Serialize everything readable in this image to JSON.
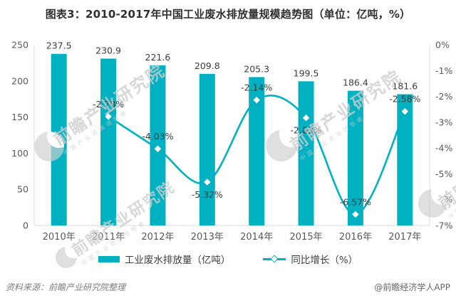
{
  "title": "图表3：2010-2017年中国工业废水排放量规模趋势图（单位：亿吨，%）",
  "colors": {
    "accent": "#00b1c2",
    "axis_line": "#d9d9d9",
    "tick_text": "#595959",
    "value_text": "#3d3d3d",
    "title_text": "#303030",
    "watermark": "#cdcdcd"
  },
  "watermark": {
    "text": "前瞻产业研究院",
    "subtext": "中国产业咨询领导者"
  },
  "footer": {
    "source": "资料来源：前瞻产业研究院整理",
    "credit": "@前瞻经济学人APP"
  },
  "chart_data": {
    "type": "bar",
    "subtype": "bar+line-combo",
    "title": "图表3：2010-2017年中国工业废水排放量规模趋势图（单位：亿吨，%）",
    "categories": [
      "2010年",
      "2011年",
      "2012年",
      "2013年",
      "2014年",
      "2015年",
      "2016年",
      "2017年"
    ],
    "series": [
      {
        "name": "工业废水排放量（亿吨）",
        "type": "bar",
        "axis": "left",
        "values": [
          237.5,
          230.9,
          221.6,
          209.8,
          205.3,
          199.5,
          186.4,
          181.6
        ],
        "labels": [
          "237.5",
          "230.9",
          "221.6",
          "209.8",
          "205.3",
          "199.5",
          "186.4",
          "181.6"
        ]
      },
      {
        "name": "同比增长（%）",
        "type": "line",
        "axis": "right",
        "smooth": true,
        "marker": "diamond",
        "values": [
          null,
          -2.78,
          -4.03,
          -5.32,
          -2.14,
          -2.83,
          -6.57,
          -2.58
        ],
        "labels": [
          null,
          "-2.78%",
          "-4.03%",
          "-5.32%",
          "-2.14%",
          "-2.83%",
          "-6.57%",
          "-2.58%"
        ],
        "label_side": [
          null,
          "above",
          "above",
          "below",
          "above",
          "below",
          "above",
          "above"
        ]
      }
    ],
    "left_axis": {
      "min": 0,
      "max": 250,
      "step": 50,
      "ticks": [
        0,
        50,
        100,
        150,
        200,
        250
      ]
    },
    "right_axis": {
      "min": -7,
      "max": 0,
      "step": 1,
      "suffix": "%",
      "ticks": [
        "0%",
        "-1%",
        "-2%",
        "-3%",
        "-4%",
        "-5%",
        "-6%",
        "-7%"
      ]
    },
    "grid": false,
    "legend_position": "bottom"
  }
}
